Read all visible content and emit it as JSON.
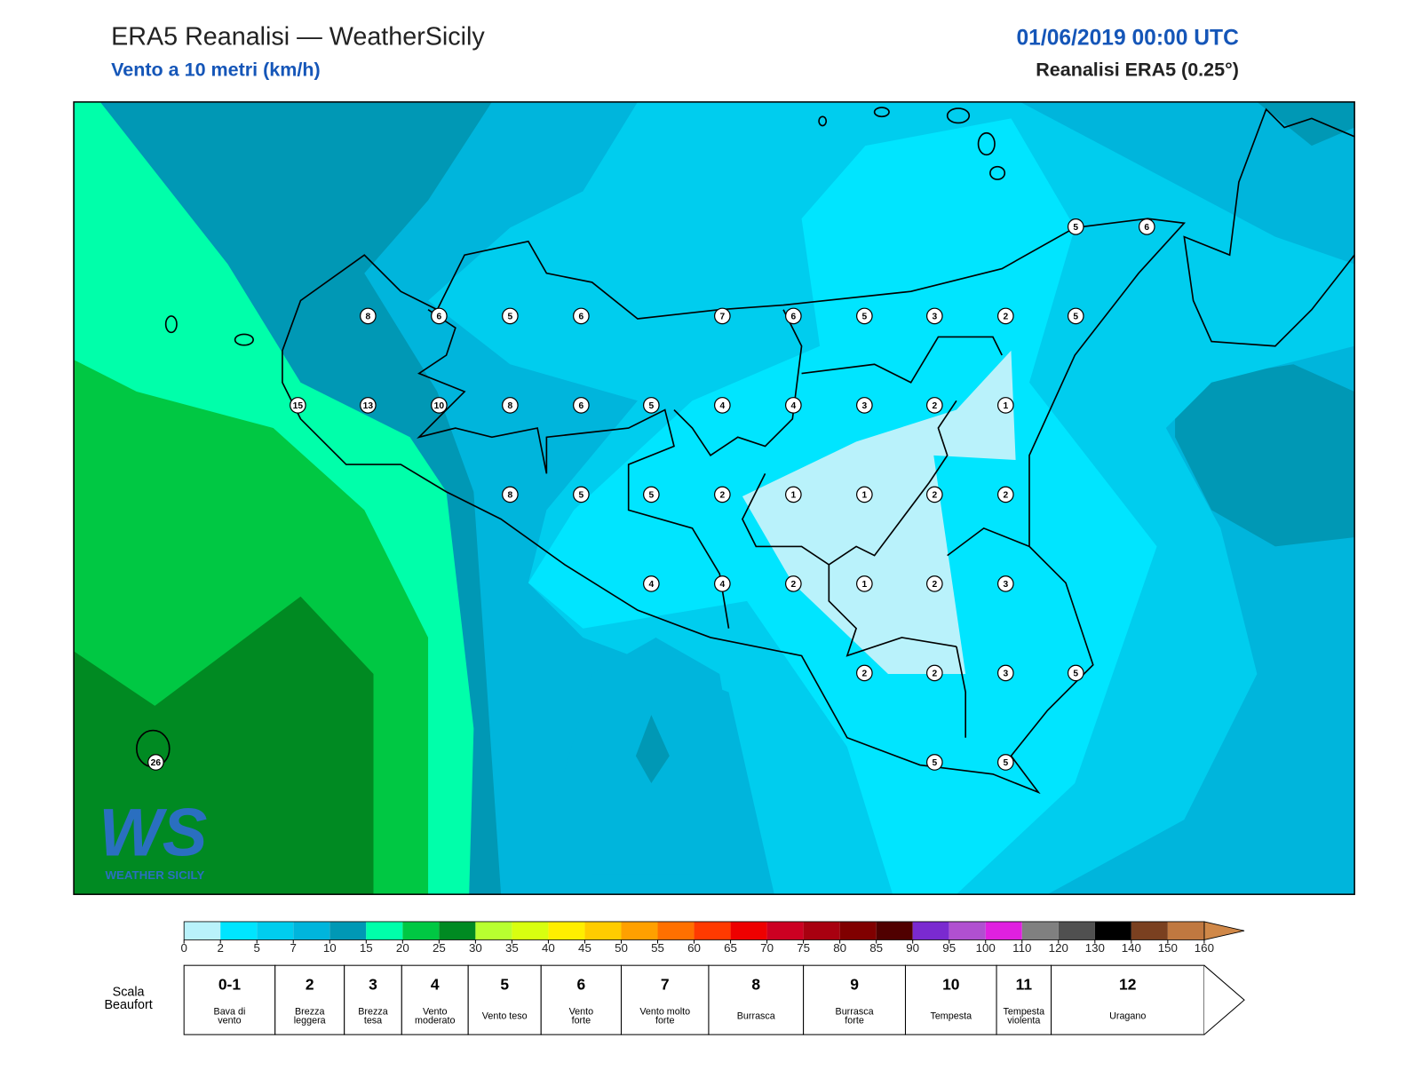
{
  "header": {
    "title": "ERA5 Reanalisi — WeatherSicily",
    "subtitle": "Vento a 10 metri (km/h)",
    "date": "01/06/2019 00:00 UTC",
    "source": "Reanalisi ERA5 (0.25°)"
  },
  "map": {
    "stations": [
      8,
      6,
      5,
      6,
      7,
      6,
      5,
      3,
      2,
      5,
      15,
      13,
      10,
      8,
      6,
      5,
      4,
      4,
      3,
      2,
      1,
      8,
      5,
      5,
      2,
      1,
      1,
      2,
      2,
      4,
      4,
      2,
      1,
      2,
      3,
      2,
      2,
      3,
      5,
      5,
      5,
      5,
      6,
      26
    ]
  },
  "logo": {
    "mark": "WS",
    "text": "WEATHER SICILY"
  },
  "colorbar": {
    "ticks": [
      0,
      2,
      5,
      7,
      10,
      15,
      20,
      25,
      30,
      35,
      40,
      45,
      50,
      55,
      60,
      65,
      70,
      75,
      80,
      85,
      90,
      95,
      100,
      110,
      120,
      130,
      140,
      150,
      160
    ],
    "colors": [
      "#b9f2fb",
      "#00e5ff",
      "#00cdee",
      "#00b5dc",
      "#0098b5",
      "#00ffaa",
      "#00c843",
      "#008a22",
      "#b8ff30",
      "#d8ff10",
      "#ffee00",
      "#ffcc00",
      "#ffa000",
      "#ff7000",
      "#ff3a00",
      "#ee0000",
      "#cc0022",
      "#a80010",
      "#800000",
      "#500000",
      "#7a2ad0",
      "#b050d0",
      "#e020e0",
      "#808080",
      "#505050",
      "#000000",
      "#7a4020",
      "#c07840"
    ],
    "extend_color": "#d08848"
  },
  "beaufort": {
    "label": [
      "Scala",
      "Beaufort"
    ],
    "levels": [
      {
        "force": "0-1",
        "description": [
          "Bava di",
          "vento"
        ]
      },
      {
        "force": "2",
        "description": [
          "Brezza",
          "leggera"
        ]
      },
      {
        "force": "3",
        "description": [
          "Brezza",
          "tesa"
        ]
      },
      {
        "force": "4",
        "description": [
          "Vento",
          "moderato"
        ]
      },
      {
        "force": "5",
        "description": [
          "Vento teso"
        ]
      },
      {
        "force": "6",
        "description": [
          "Vento",
          "forte"
        ]
      },
      {
        "force": "7",
        "description": [
          "Vento molto",
          "forte"
        ]
      },
      {
        "force": "8",
        "description": [
          "Burrasca"
        ]
      },
      {
        "force": "9",
        "description": [
          "Burrasca",
          "forte"
        ]
      },
      {
        "force": "10",
        "description": [
          "Tempesta"
        ]
      },
      {
        "force": "11",
        "description": [
          "Tempesta",
          "violenta"
        ]
      },
      {
        "force": "12",
        "description": [
          "Uragano"
        ]
      }
    ]
  }
}
